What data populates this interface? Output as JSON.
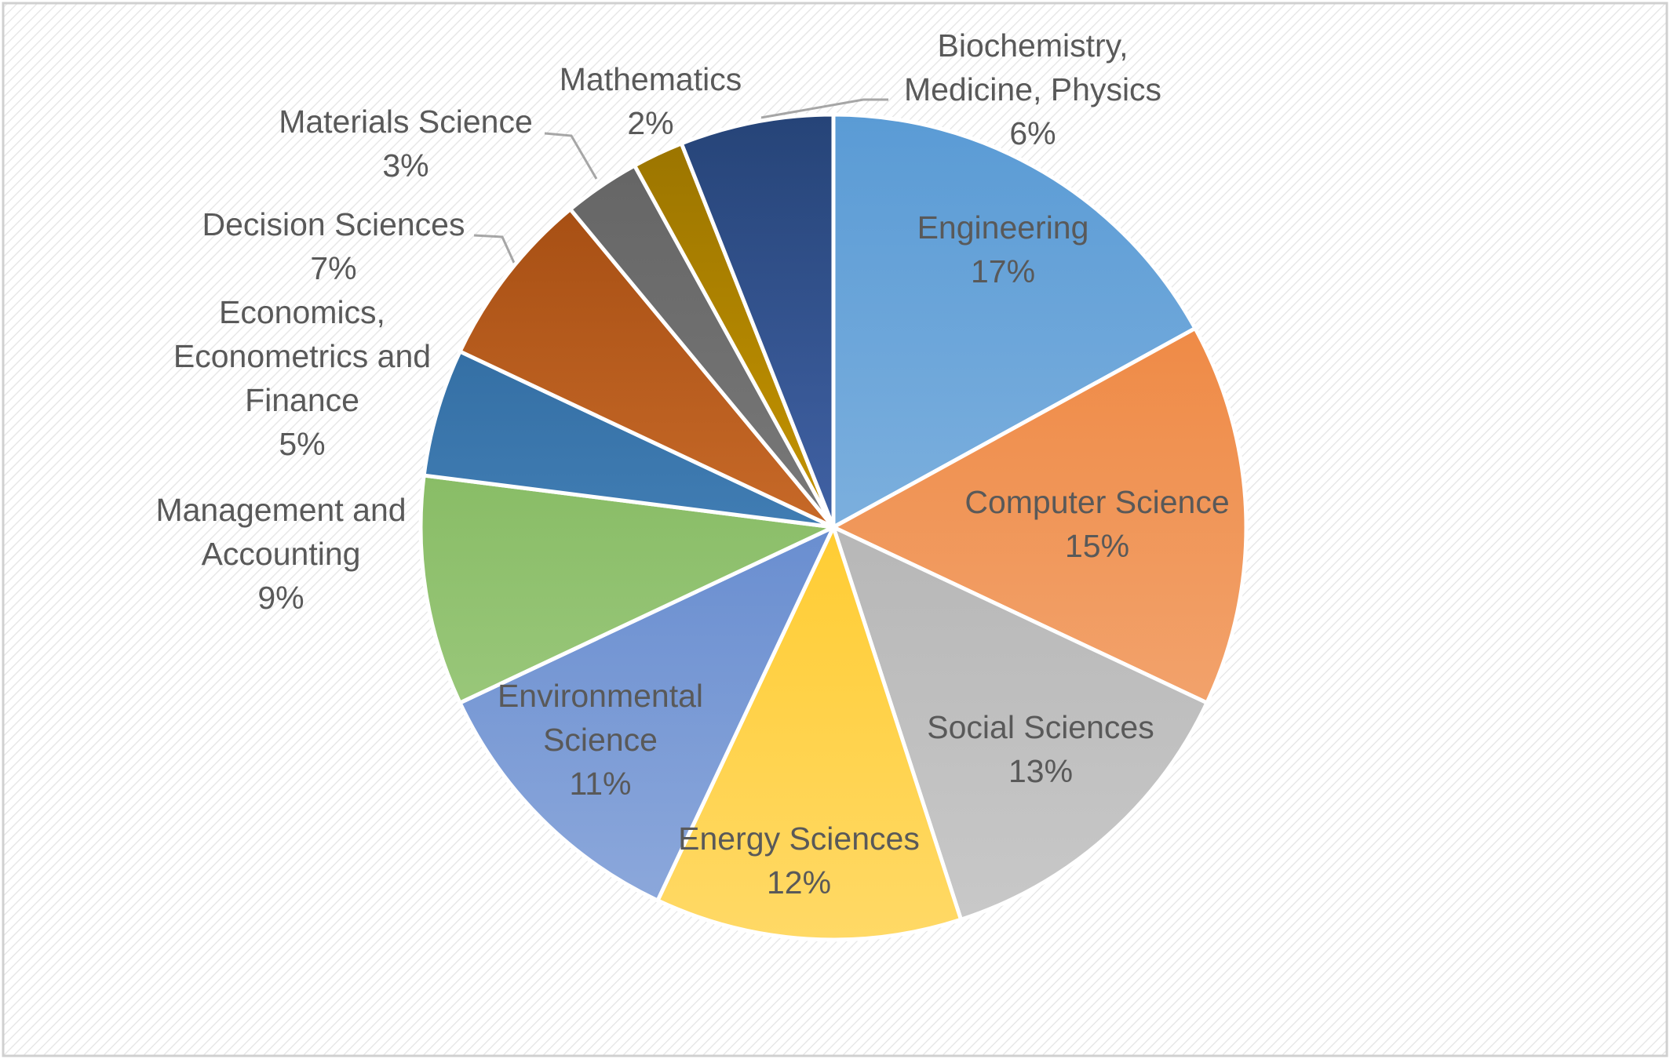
{
  "chart_data": {
    "type": "pie",
    "title": "",
    "legend": "none",
    "slices": [
      {
        "label": [
          "Engineering"
        ],
        "percent_label": "17%",
        "value": 17,
        "color_top": "#5a9bd5",
        "color_bottom": "#9dc3e6"
      },
      {
        "label": [
          "Computer Science"
        ],
        "percent_label": "15%",
        "value": 15,
        "color_top": "#ed7d31",
        "color_bottom": "#f4b183"
      },
      {
        "label": [
          "Social Sciences"
        ],
        "percent_label": "13%",
        "value": 13,
        "color_top": "#a5a5a5",
        "color_bottom": "#c9c9c9"
      },
      {
        "label": [
          "Energy Sciences"
        ],
        "percent_label": "12%",
        "value": 12,
        "color_top": "#ffc000",
        "color_bottom": "#ffd966"
      },
      {
        "label": [
          "Environmental",
          "Science"
        ],
        "percent_label": "11%",
        "value": 11,
        "color_top": "#4472c4",
        "color_bottom": "#8faadc"
      },
      {
        "label": [
          "Management and",
          "Accounting"
        ],
        "percent_label": "9%",
        "value": 9,
        "color_top": "#70ad47",
        "color_bottom": "#a9d18e"
      },
      {
        "label": [
          "Economics,",
          "Econometrics and",
          "Finance"
        ],
        "percent_label": "5%",
        "value": 5,
        "color_top": "#255e91",
        "color_bottom": "#5b9bd5"
      },
      {
        "label": [
          "Decision Sciences"
        ],
        "percent_label": "7%",
        "value": 7,
        "color_top": "#9e480e",
        "color_bottom": "#f08a42"
      },
      {
        "label": [
          "Materials Science"
        ],
        "percent_label": "3%",
        "value": 3,
        "color_top": "#636363",
        "color_bottom": "#8e8e8e"
      },
      {
        "label": [
          "Mathematics"
        ],
        "percent_label": "2%",
        "value": 2,
        "color_top": "#997300",
        "color_bottom": "#f0b400"
      },
      {
        "label": [
          "Biochemistry,",
          "Medicine, Physics"
        ],
        "percent_label": "6%",
        "value": 6,
        "color_top": "#264478",
        "color_bottom": "#5b7fd0"
      }
    ]
  }
}
